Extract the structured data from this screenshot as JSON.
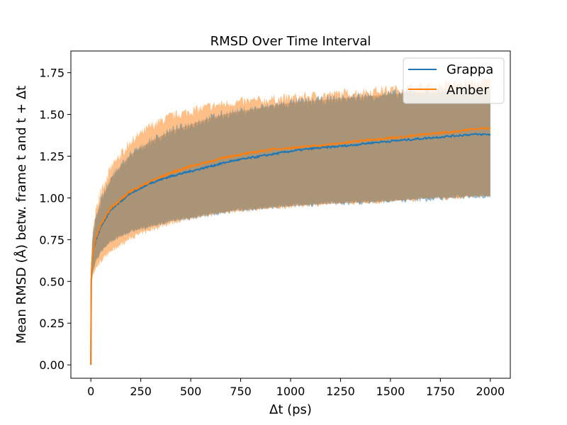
{
  "chart_data": {
    "type": "line",
    "title": "RMSD Over Time Interval",
    "xlabel": "Δt (ps)",
    "ylabel": "Mean RMSD (Å) betw. frame t and t + Δt",
    "xlim": [
      -100,
      2100
    ],
    "ylim": [
      -0.08,
      1.88
    ],
    "x_ticks": [
      0,
      250,
      500,
      750,
      1000,
      1250,
      1500,
      1750,
      2000
    ],
    "y_ticks": [
      0.0,
      0.25,
      0.5,
      0.75,
      1.0,
      1.25,
      1.5,
      1.75
    ],
    "y_tick_labels": [
      "0.00",
      "0.25",
      "0.50",
      "0.75",
      "1.00",
      "1.25",
      "1.50",
      "1.75"
    ],
    "legend_position": "top-right",
    "grid": false,
    "series": [
      {
        "name": "Grappa",
        "color": "#1f77b4",
        "x": [
          0,
          2,
          5,
          10,
          25,
          50,
          100,
          200,
          300,
          400,
          500,
          600,
          700,
          800,
          900,
          1000,
          1100,
          1200,
          1300,
          1400,
          1500,
          1600,
          1700,
          1800,
          1900,
          2000
        ],
        "y": [
          0.0,
          0.5,
          0.6,
          0.68,
          0.75,
          0.83,
          0.93,
          1.03,
          1.09,
          1.13,
          1.16,
          1.19,
          1.22,
          1.24,
          1.26,
          1.28,
          1.295,
          1.305,
          1.315,
          1.33,
          1.34,
          1.35,
          1.36,
          1.37,
          1.38,
          1.38
        ],
        "lower": [
          0.0,
          0.48,
          0.52,
          0.56,
          0.62,
          0.68,
          0.74,
          0.8,
          0.83,
          0.86,
          0.88,
          0.9,
          0.92,
          0.93,
          0.94,
          0.95,
          0.96,
          0.965,
          0.97,
          0.975,
          0.98,
          0.985,
          0.99,
          1.0,
          1.01,
          1.01
        ],
        "upper": [
          0.0,
          0.55,
          0.68,
          0.78,
          0.88,
          0.98,
          1.12,
          1.26,
          1.34,
          1.4,
          1.44,
          1.48,
          1.51,
          1.53,
          1.55,
          1.57,
          1.58,
          1.59,
          1.6,
          1.61,
          1.62,
          1.63,
          1.63,
          1.64,
          1.65,
          1.65
        ]
      },
      {
        "name": "Amber",
        "color": "#ff7f0e",
        "x": [
          0,
          2,
          5,
          10,
          25,
          50,
          100,
          200,
          300,
          400,
          500,
          600,
          700,
          800,
          900,
          1000,
          1100,
          1200,
          1300,
          1400,
          1500,
          1600,
          1700,
          1800,
          1900,
          2000
        ],
        "y": [
          0.0,
          0.5,
          0.6,
          0.68,
          0.76,
          0.84,
          0.94,
          1.04,
          1.1,
          1.15,
          1.19,
          1.22,
          1.25,
          1.27,
          1.29,
          1.3,
          1.31,
          1.32,
          1.335,
          1.35,
          1.36,
          1.37,
          1.385,
          1.395,
          1.41,
          1.42
        ],
        "lower": [
          0.0,
          0.45,
          0.5,
          0.54,
          0.58,
          0.62,
          0.68,
          0.76,
          0.81,
          0.85,
          0.88,
          0.9,
          0.92,
          0.93,
          0.94,
          0.95,
          0.96,
          0.965,
          0.97,
          0.975,
          0.98,
          0.99,
          1.0,
          1.0,
          1.01,
          1.01
        ],
        "upper": [
          0.0,
          0.55,
          0.7,
          0.8,
          0.92,
          1.04,
          1.18,
          1.34,
          1.43,
          1.49,
          1.52,
          1.55,
          1.57,
          1.58,
          1.59,
          1.6,
          1.61,
          1.62,
          1.63,
          1.64,
          1.65,
          1.66,
          1.67,
          1.68,
          1.69,
          1.7
        ]
      }
    ]
  }
}
